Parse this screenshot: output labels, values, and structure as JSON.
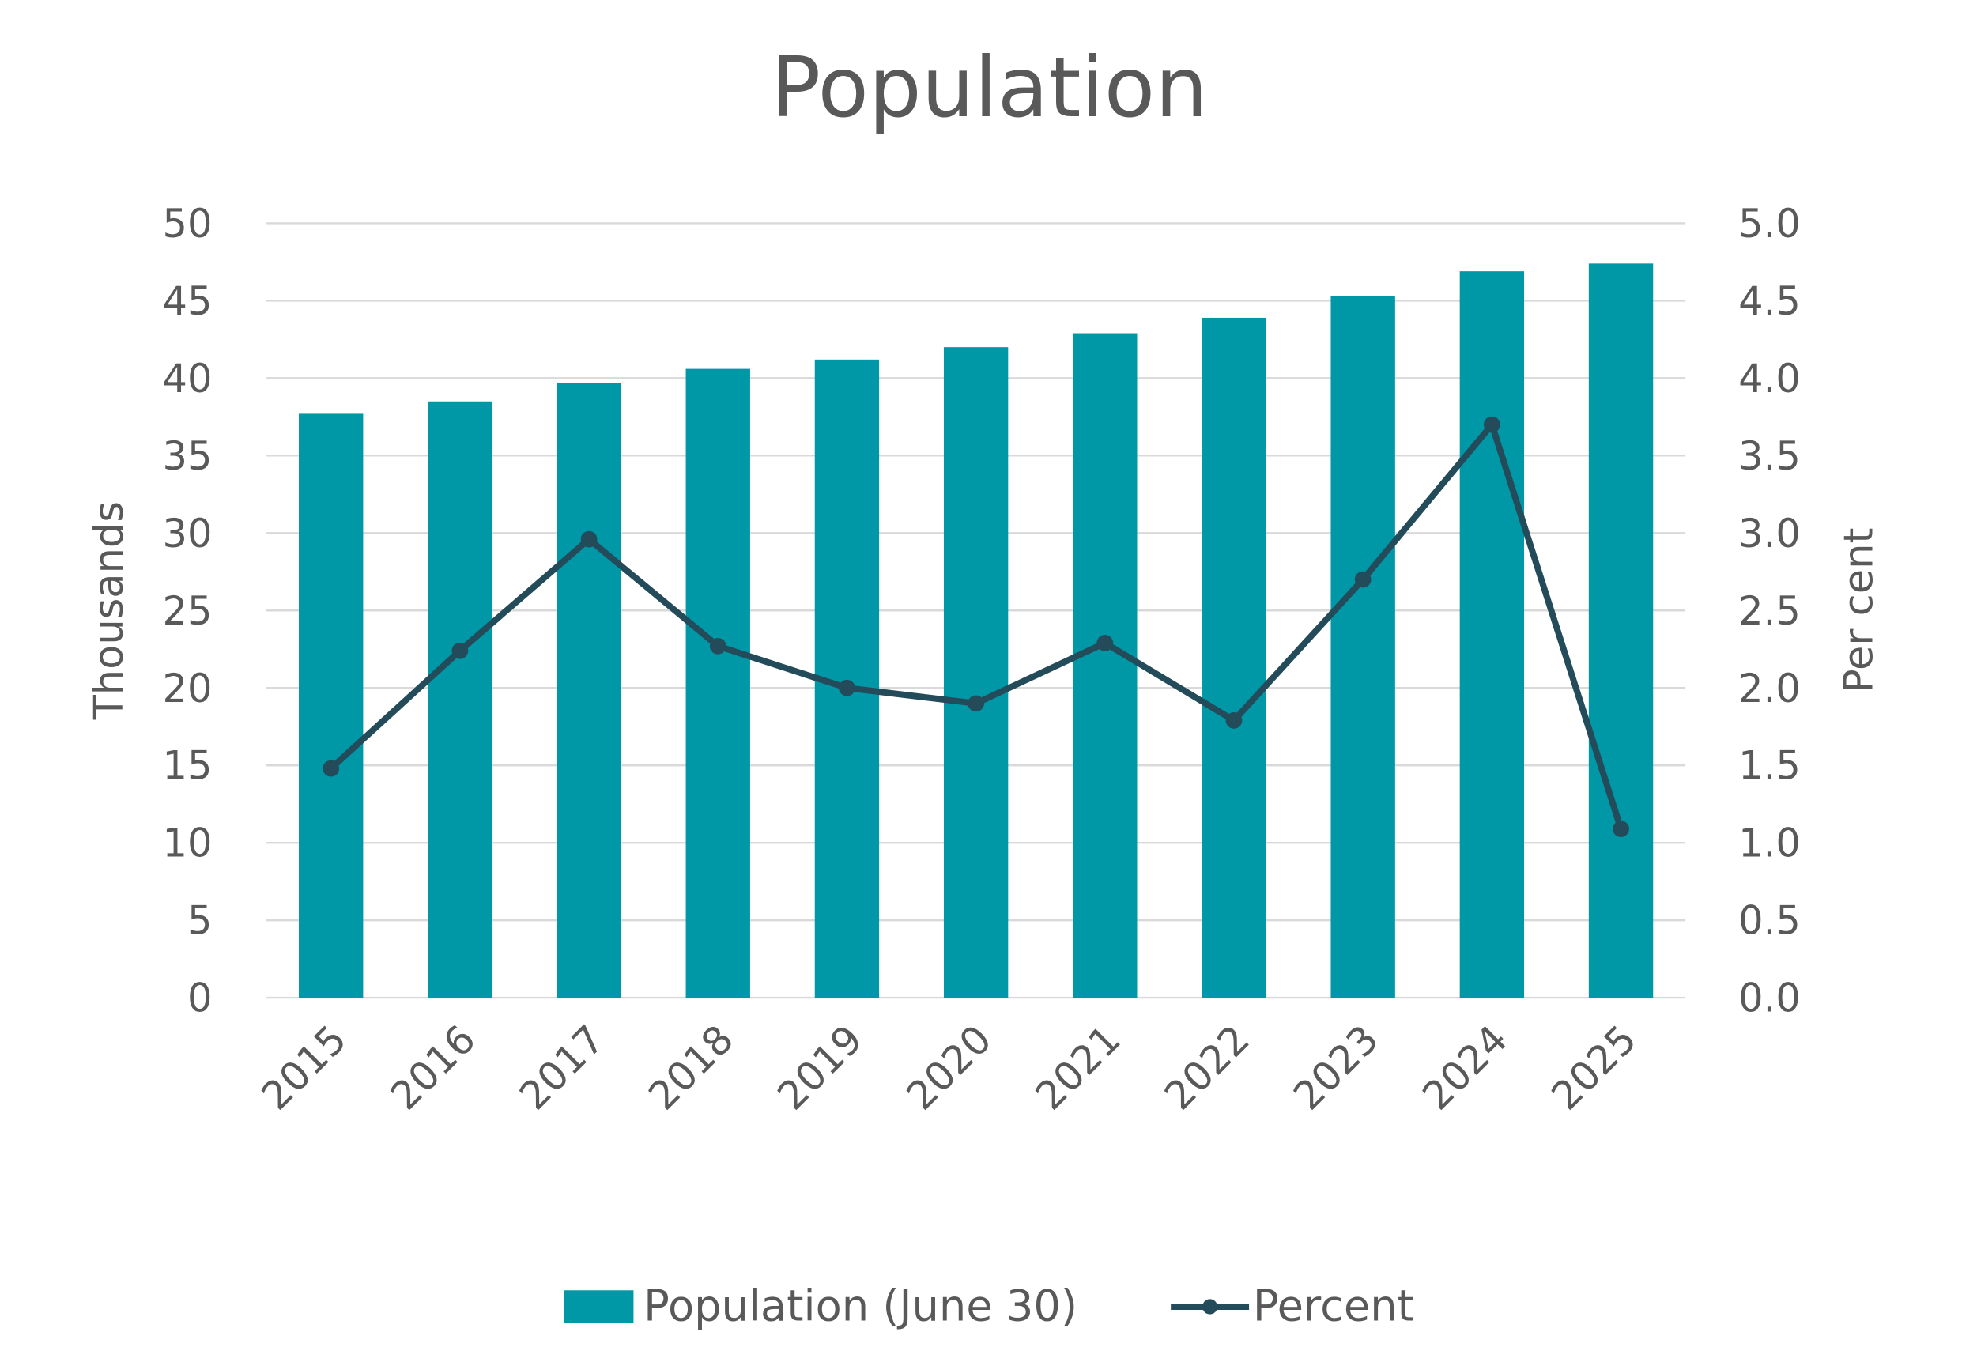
{
  "chart_data": {
    "type": "bar+line",
    "title": "Population",
    "categories": [
      "2015",
      "2016",
      "2017",
      "2018",
      "2019",
      "2020",
      "2021",
      "2022",
      "2023",
      "2024",
      "2025"
    ],
    "series": [
      {
        "name": "Population (June 30)",
        "type": "bar",
        "axis": "left",
        "color": "#0097A7",
        "values": [
          37.7,
          38.5,
          39.7,
          40.6,
          41.2,
          42.0,
          42.9,
          43.9,
          45.3,
          46.9,
          47.4
        ]
      },
      {
        "name": "Percent",
        "type": "line",
        "axis": "right",
        "color": "#234B5A",
        "values": [
          1.48,
          2.24,
          2.96,
          2.27,
          2.0,
          1.9,
          2.29,
          1.79,
          2.7,
          3.7,
          1.09
        ]
      }
    ],
    "ylabel": "Thousands",
    "y2label": "Per cent",
    "ylim": [
      0,
      50
    ],
    "y2lim": [
      0,
      5
    ],
    "yticks": [
      "0",
      "5",
      "10",
      "15",
      "20",
      "25",
      "30",
      "35",
      "40",
      "45",
      "50"
    ],
    "y2ticks": [
      "0.0",
      "0.5",
      "1.0",
      "1.5",
      "2.0",
      "2.5",
      "3.0",
      "3.5",
      "4.0",
      "4.5",
      "5.0"
    ],
    "grid": true,
    "legend_position": "bottom"
  }
}
